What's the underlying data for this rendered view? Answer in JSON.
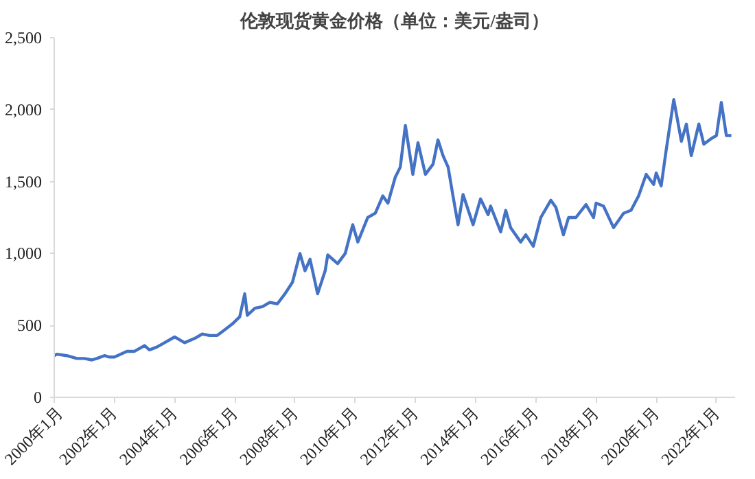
{
  "chart_data": {
    "type": "line",
    "title": "伦敦现货黄金价格（单位：美元/盎司）",
    "x": [
      "2000-01",
      "2000-02",
      "2000-06",
      "2000-10",
      "2001-01",
      "2001-04",
      "2001-06",
      "2001-09",
      "2001-11",
      "2002-01",
      "2002-06",
      "2002-09",
      "2003-01",
      "2003-03",
      "2003-06",
      "2003-09",
      "2004-01",
      "2004-05",
      "2004-09",
      "2004-12",
      "2005-03",
      "2005-06",
      "2005-09",
      "2005-12",
      "2006-03",
      "2006-05",
      "2006-06",
      "2006-09",
      "2006-12",
      "2007-03",
      "2007-06",
      "2007-09",
      "2007-12",
      "2008-03",
      "2008-05",
      "2008-07",
      "2008-10",
      "2009-01",
      "2009-02",
      "2009-06",
      "2009-09",
      "2009-12",
      "2010-02",
      "2010-06",
      "2010-09",
      "2010-12",
      "2011-02",
      "2011-05",
      "2011-07",
      "2011-09",
      "2011-12",
      "2012-02",
      "2012-05",
      "2012-08",
      "2012-10",
      "2012-12",
      "2013-02",
      "2013-04",
      "2013-06",
      "2013-08",
      "2013-12",
      "2014-03",
      "2014-06",
      "2014-07",
      "2014-11",
      "2015-01",
      "2015-03",
      "2015-07",
      "2015-09",
      "2015-12",
      "2016-03",
      "2016-07",
      "2016-09",
      "2016-12",
      "2017-02",
      "2017-05",
      "2017-09",
      "2017-12",
      "2018-01",
      "2018-04",
      "2018-08",
      "2018-12",
      "2019-03",
      "2019-06",
      "2019-09",
      "2019-12",
      "2020-01",
      "2020-03",
      "2020-05",
      "2020-08",
      "2020-11",
      "2021-01",
      "2021-03",
      "2021-06",
      "2021-08",
      "2021-11",
      "2022-01",
      "2022-03",
      "2022-05",
      "2022-07"
    ],
    "series": [
      {
        "color": "#4472c4",
        "values": [
          290,
          300,
          290,
          270,
          270,
          260,
          270,
          290,
          280,
          280,
          320,
          320,
          360,
          330,
          350,
          380,
          420,
          380,
          410,
          440,
          430,
          430,
          470,
          510,
          560,
          720,
          570,
          620,
          630,
          660,
          650,
          720,
          800,
          1000,
          880,
          960,
          720,
          880,
          990,
          930,
          1000,
          1200,
          1080,
          1250,
          1280,
          1400,
          1350,
          1530,
          1600,
          1890,
          1550,
          1770,
          1550,
          1620,
          1790,
          1680,
          1600,
          1400,
          1200,
          1410,
          1200,
          1380,
          1270,
          1330,
          1150,
          1300,
          1180,
          1080,
          1130,
          1050,
          1250,
          1370,
          1320,
          1130,
          1250,
          1250,
          1340,
          1250,
          1350,
          1330,
          1180,
          1280,
          1300,
          1400,
          1550,
          1480,
          1560,
          1470,
          1720,
          2070,
          1780,
          1900,
          1680,
          1900,
          1760,
          1800,
          1820,
          2050,
          1820,
          1820
        ]
      }
    ],
    "xlim": [
      "2000-01-01",
      "2022-08-15"
    ],
    "xticks": [
      {
        "value": "2000-01",
        "label": "2000年1月"
      },
      {
        "value": "2002-01",
        "label": "2002年1月"
      },
      {
        "value": "2004-01",
        "label": "2004年1月"
      },
      {
        "value": "2006-01",
        "label": "2006年1月"
      },
      {
        "value": "2008-01",
        "label": "2008年1月"
      },
      {
        "value": "2010-01",
        "label": "2010年1月"
      },
      {
        "value": "2012-01",
        "label": "2012年1月"
      },
      {
        "value": "2014-01",
        "label": "2014年1月"
      },
      {
        "value": "2016-01",
        "label": "2016年1月"
      },
      {
        "value": "2018-01",
        "label": "2018年1月"
      },
      {
        "value": "2020-01",
        "label": "2020年1月"
      },
      {
        "value": "2022-01",
        "label": "2022年1月"
      }
    ],
    "ylim": [
      0,
      2500
    ],
    "yticks": [
      {
        "value": 0,
        "label": "0"
      },
      {
        "value": 500,
        "label": "500"
      },
      {
        "value": 1000,
        "label": "1,000"
      },
      {
        "value": 1500,
        "label": "1,500"
      },
      {
        "value": 2000,
        "label": "2,000"
      },
      {
        "value": 2500,
        "label": "2,500"
      }
    ],
    "grid": false,
    "marker": "none",
    "line_style": "solid"
  }
}
